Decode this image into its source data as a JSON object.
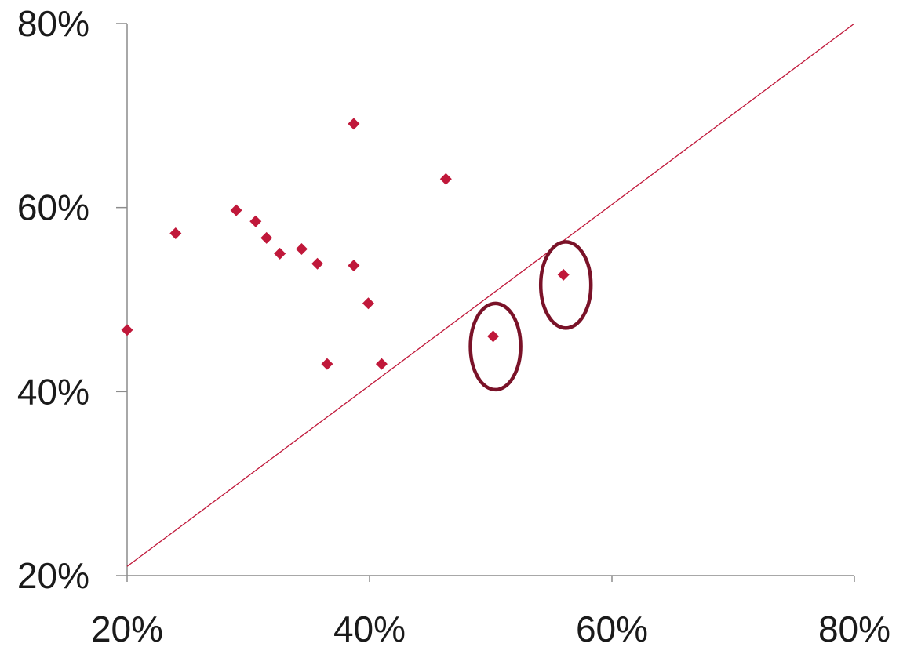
{
  "chart_data": {
    "type": "scatter",
    "title": "",
    "xlabel": "",
    "ylabel": "",
    "xlim": [
      0.2,
      0.8
    ],
    "ylim": [
      0.2,
      0.8
    ],
    "x_ticks": [
      0.2,
      0.4,
      0.6,
      0.8
    ],
    "y_ticks": [
      0.2,
      0.4,
      0.6,
      0.8
    ],
    "x_tick_labels": [
      "20%",
      "40%",
      "60%",
      "80%"
    ],
    "y_tick_labels": [
      "20%",
      "40%",
      "60%",
      "80%"
    ],
    "grid": false,
    "legend": "none",
    "marker": "diamond",
    "marker_color": "#c0183a",
    "reference_line": {
      "from": [
        0.2,
        0.21
      ],
      "to": [
        0.8,
        0.8
      ],
      "color": "#c0183a"
    },
    "highlights": [
      {
        "x": 0.502,
        "y": 0.46,
        "color": "#7a1228"
      },
      {
        "x": 0.56,
        "y": 0.527,
        "color": "#7a1228"
      }
    ],
    "series": [
      {
        "points": [
          {
            "x": 0.2,
            "y": 0.467
          },
          {
            "x": 0.24,
            "y": 0.572
          },
          {
            "x": 0.29,
            "y": 0.597
          },
          {
            "x": 0.306,
            "y": 0.585
          },
          {
            "x": 0.315,
            "y": 0.567
          },
          {
            "x": 0.326,
            "y": 0.55
          },
          {
            "x": 0.344,
            "y": 0.555
          },
          {
            "x": 0.357,
            "y": 0.539
          },
          {
            "x": 0.365,
            "y": 0.43
          },
          {
            "x": 0.387,
            "y": 0.691
          },
          {
            "x": 0.387,
            "y": 0.537
          },
          {
            "x": 0.399,
            "y": 0.496
          },
          {
            "x": 0.41,
            "y": 0.43
          },
          {
            "x": 0.463,
            "y": 0.631
          },
          {
            "x": 0.502,
            "y": 0.46
          },
          {
            "x": 0.56,
            "y": 0.527
          }
        ]
      }
    ]
  }
}
